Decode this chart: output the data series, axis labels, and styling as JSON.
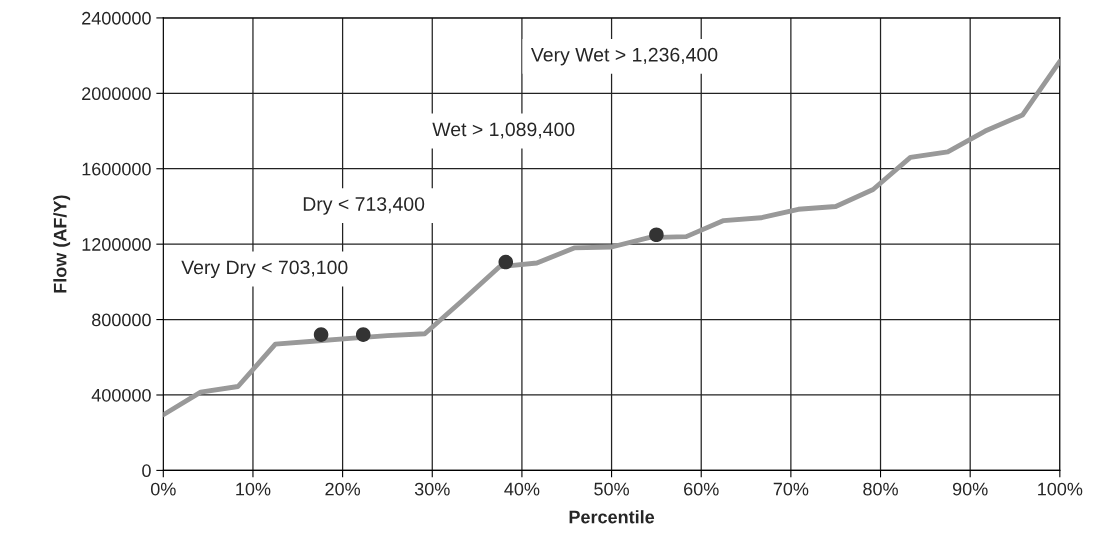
{
  "chart_data": {
    "type": "line",
    "xlabel": "Percentile",
    "ylabel": "Flow (AF/Y)",
    "xlim": [
      0,
      100
    ],
    "ylim": [
      0,
      2400000
    ],
    "xticks": [
      {
        "value": 0,
        "label": "0%"
      },
      {
        "value": 10,
        "label": "10%"
      },
      {
        "value": 20,
        "label": "20%"
      },
      {
        "value": 30,
        "label": "30%"
      },
      {
        "value": 40,
        "label": "40%"
      },
      {
        "value": 50,
        "label": "50%"
      },
      {
        "value": 60,
        "label": "60%"
      },
      {
        "value": 70,
        "label": "70%"
      },
      {
        "value": 80,
        "label": "80%"
      },
      {
        "value": 90,
        "label": "90%"
      },
      {
        "value": 100,
        "label": "100%"
      }
    ],
    "yticks": [
      0,
      400000,
      800000,
      1200000,
      1600000,
      2000000,
      2400000
    ],
    "grid": true,
    "legend": false,
    "series": [
      {
        "color": "#999999",
        "marker": "none",
        "x": [
          0,
          4.17,
          8.33,
          12.5,
          16.67,
          20.83,
          25,
          29.17,
          33.33,
          37.5,
          41.67,
          45.83,
          50,
          54.17,
          58.33,
          62.5,
          66.67,
          70.83,
          75,
          79.17,
          83.33,
          87.5,
          91.67,
          95.83,
          100
        ],
        "values": [
          295000,
          415000,
          445000,
          670000,
          685000,
          700000,
          715000,
          725000,
          900000,
          1080000,
          1100000,
          1180000,
          1185000,
          1235000,
          1240000,
          1325000,
          1340000,
          1385000,
          1400000,
          1490000,
          1660000,
          1690000,
          1800000,
          1885000,
          2170000
        ]
      },
      {
        "type": "scatter",
        "color": "#333333",
        "marker": "circle",
        "x": [
          17.6,
          22.3,
          38.2,
          55
        ],
        "values": [
          720000,
          720000,
          1105000,
          1250000
        ]
      }
    ],
    "annotations": [
      "Very Dry < 703,100",
      "Dry < 713,400",
      "Wet > 1,089,400",
      "Very Wet > 1,236,400"
    ]
  }
}
